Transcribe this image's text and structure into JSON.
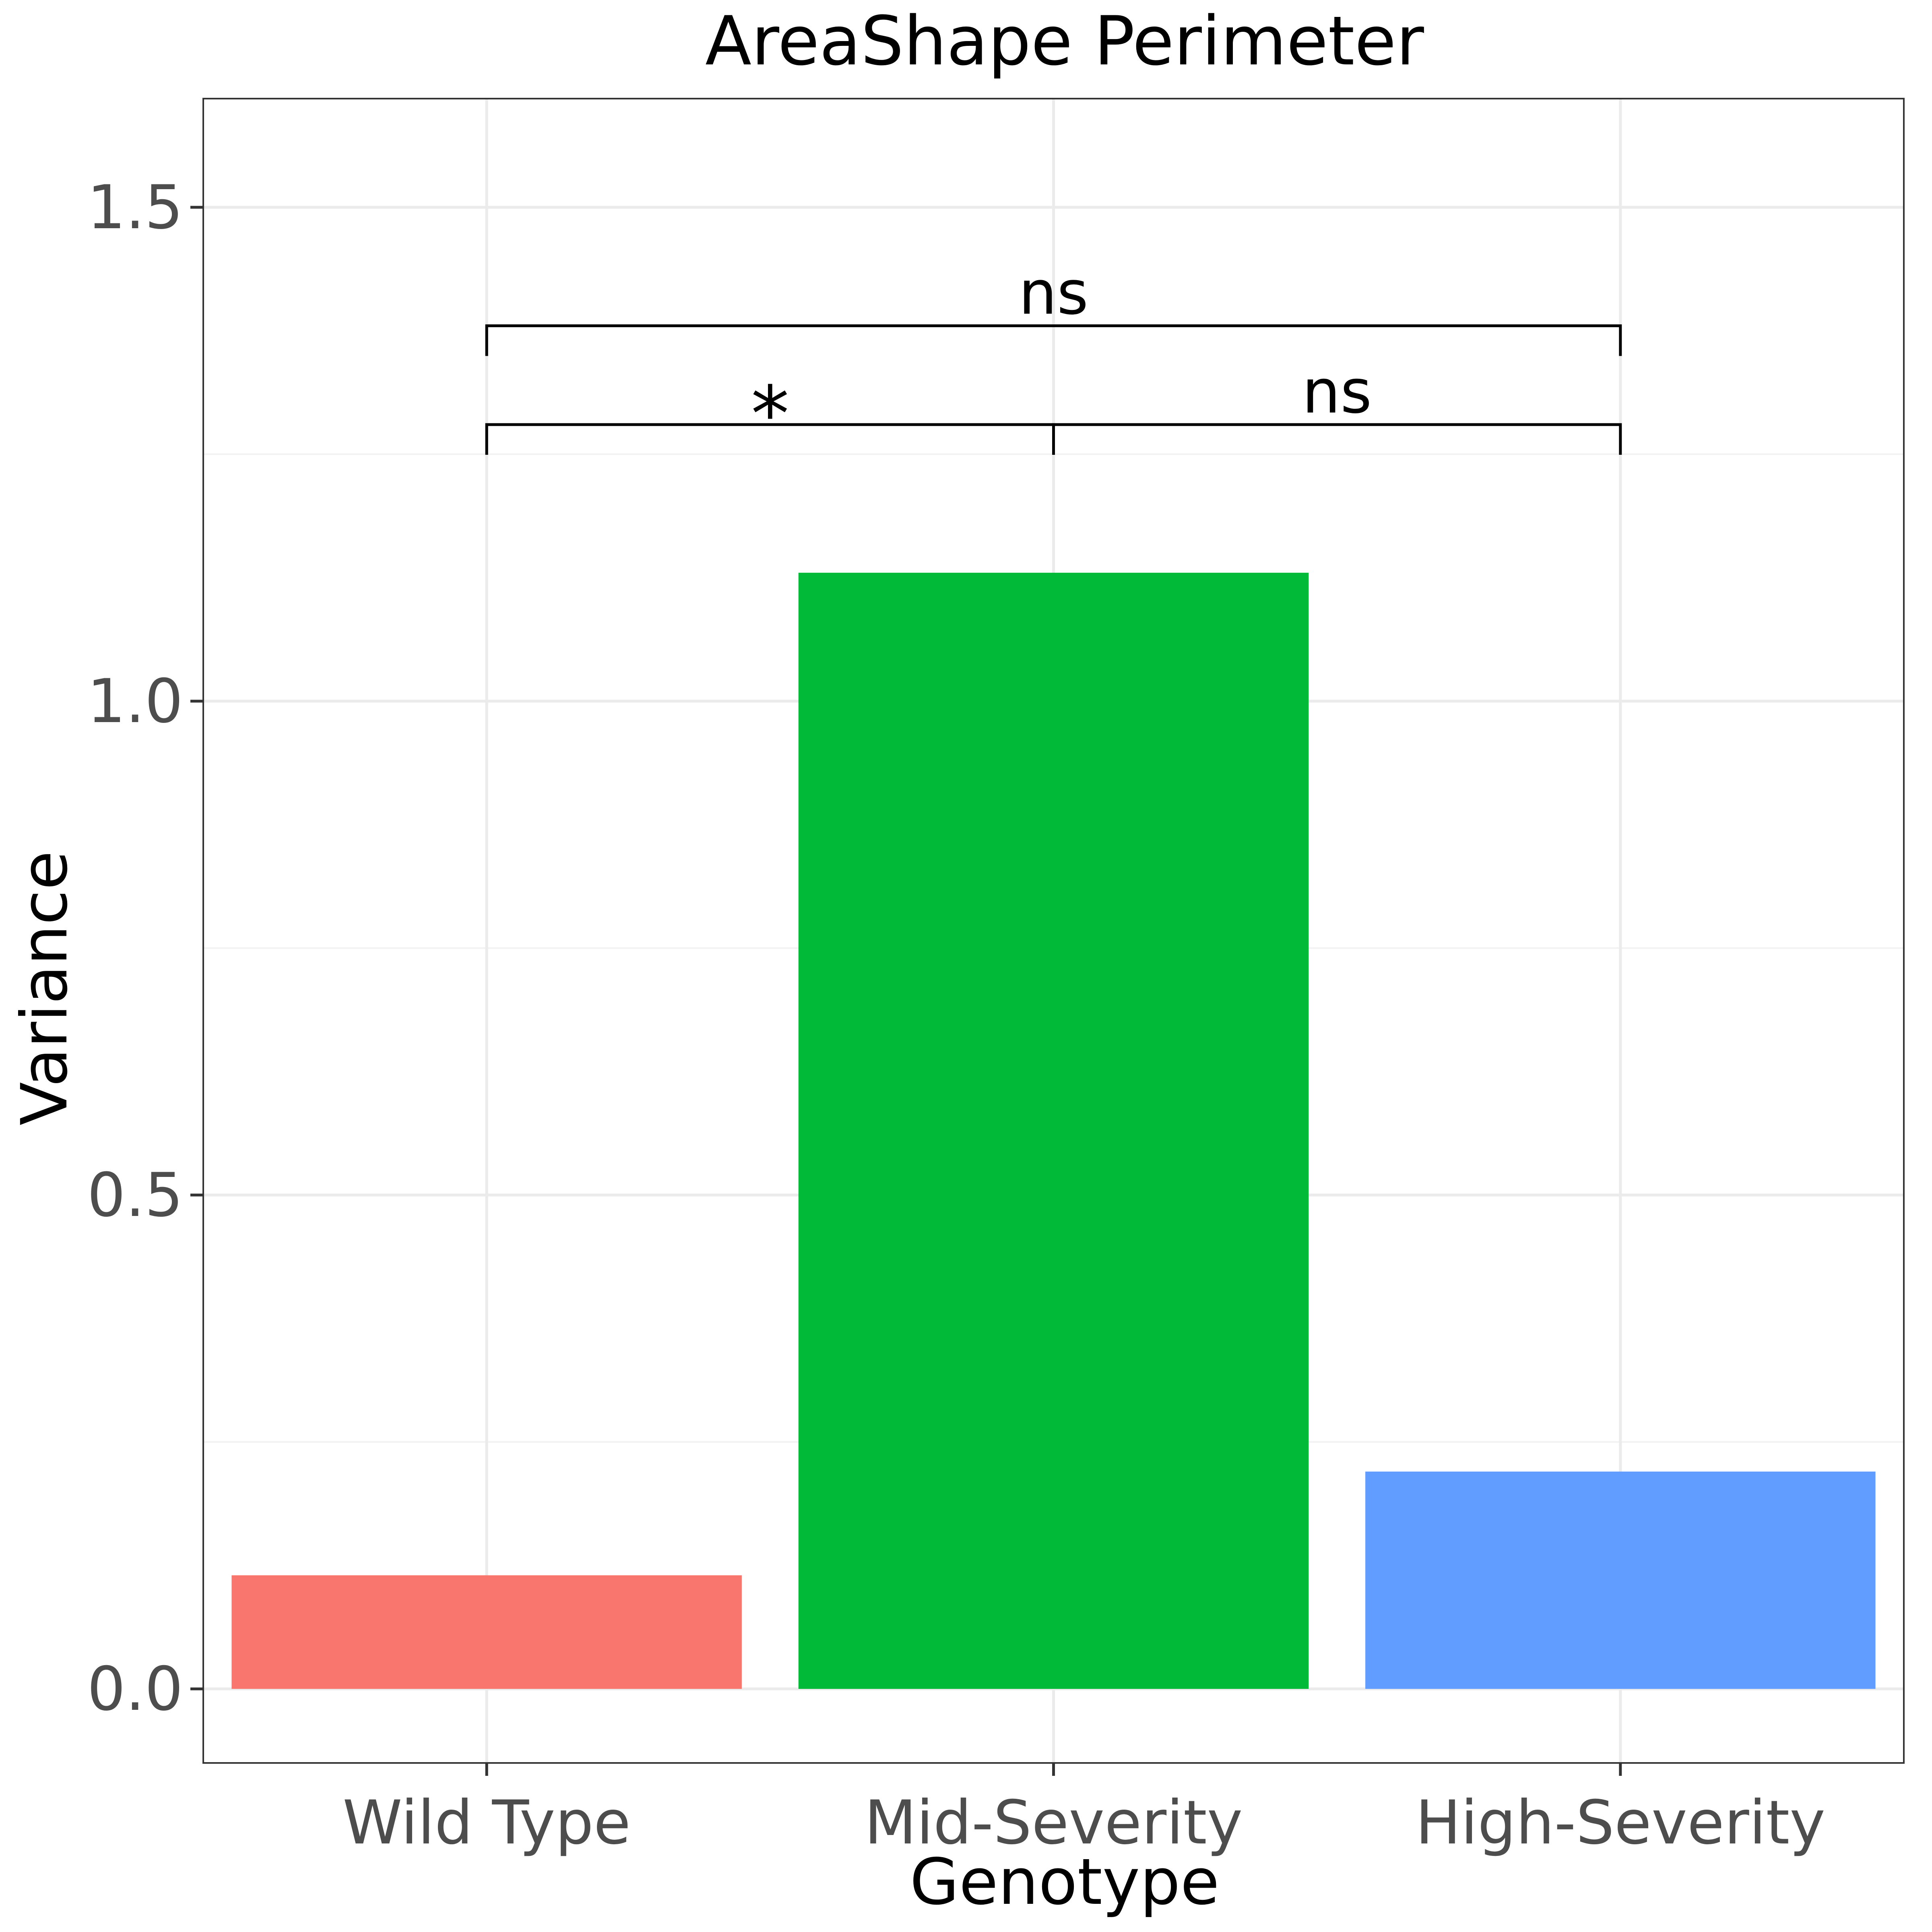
{
  "chart_data": {
    "type": "bar",
    "title": "AreaShape Perimeter",
    "xlabel": "Genotype",
    "ylabel": "Variance",
    "categories": [
      "Wild Type",
      "Mid-Severity",
      "High-Severity"
    ],
    "values": [
      0.115,
      1.13,
      0.22
    ],
    "colors": [
      "#F8766D",
      "#00BA38",
      "#619CFF"
    ],
    "ylim": [
      -0.075,
      1.61
    ],
    "yticks": [
      0.0,
      0.5,
      1.0,
      1.5
    ],
    "ytick_labels": [
      "0.0",
      "0.5",
      "1.0",
      "1.5"
    ],
    "grid": true,
    "annotations": [
      {
        "from": "Wild Type",
        "to": "Mid-Severity",
        "label": "*",
        "y": 1.28
      },
      {
        "from": "Mid-Severity",
        "to": "High-Severity",
        "label": "ns",
        "y": 1.28
      },
      {
        "from": "Wild Type",
        "to": "High-Severity",
        "label": "ns",
        "y": 1.38
      }
    ]
  }
}
